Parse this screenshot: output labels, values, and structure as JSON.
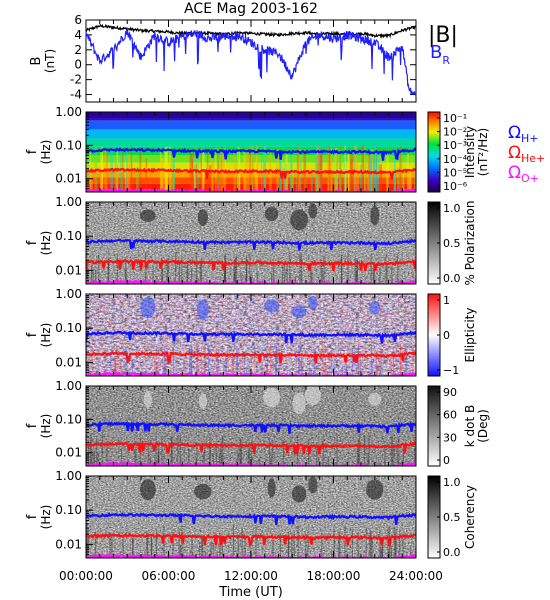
{
  "chart_data": {
    "type": "spectrogram",
    "title": "ACE Mag 2003-162",
    "x_axis": {
      "label": "Time (UT)",
      "tick_labels": [
        "00:00:00",
        "06:00:00",
        "12:00:00",
        "18:00:00",
        "24:00:00"
      ],
      "range_hours": [
        0,
        24
      ]
    },
    "field_panel": {
      "ylabel": "B",
      "yunit": "(nT)",
      "ylim": [
        -5,
        6
      ],
      "yticks": [
        -4,
        -2,
        0,
        2,
        4,
        6
      ],
      "series": [
        {
          "name": "|B|",
          "color": "#000000",
          "t_hours": [
            0,
            1,
            2,
            3,
            4,
            5,
            6,
            7,
            8,
            9,
            10,
            11,
            12,
            13,
            14,
            15,
            16,
            17,
            18,
            19,
            20,
            21,
            22,
            23,
            24
          ],
          "values": [
            4.6,
            5.2,
            5.0,
            4.8,
            4.6,
            4.5,
            4.4,
            4.2,
            4.3,
            4.2,
            4.1,
            4.3,
            4.2,
            4.1,
            4.0,
            4.2,
            4.3,
            4.1,
            4.2,
            4.0,
            4.2,
            3.9,
            3.9,
            4.6,
            5.1
          ]
        },
        {
          "name": "B_R",
          "color": "#2020ff",
          "t_hours": [
            0,
            1,
            2,
            3,
            4,
            5,
            6,
            7,
            8,
            9,
            10,
            11,
            12,
            13,
            14,
            15,
            16,
            17,
            18,
            19,
            20,
            21,
            22,
            23,
            23.5,
            24
          ],
          "values": [
            4.2,
            0.5,
            2.0,
            4.5,
            1.0,
            4.0,
            3.0,
            3.8,
            4.2,
            3.5,
            3.8,
            4.0,
            3.0,
            2.0,
            1.5,
            -1.5,
            3.0,
            4.0,
            3.5,
            4.0,
            3.5,
            3.0,
            1.0,
            2.5,
            -3.5,
            -4.0
          ]
        }
      ]
    },
    "spectrogram_panels": [
      {
        "key": "intensity",
        "ylabel": "f",
        "yunit": "(Hz)",
        "yticks": [
          "1.00",
          "0.10",
          "0.01"
        ],
        "yrange_hz": [
          0.004,
          1.0
        ],
        "colorbar_type": "rainbow",
        "colorbar_labels": [
          "10⁻¹",
          "10⁻²",
          "10⁻³",
          "10⁻⁴",
          "10⁻⁵",
          "10⁻⁶"
        ],
        "colorbar_title": "Intensity",
        "colorbar_unit": "(nT²/Hz)"
      },
      {
        "key": "polarization",
        "ylabel": "f",
        "yunit": "(Hz)",
        "yticks": [
          "1.00",
          "0.10",
          "0.01"
        ],
        "yrange_hz": [
          0.004,
          1.0
        ],
        "colorbar_type": "gray",
        "colorbar_labels": [
          "1.0",
          "0.5",
          "0.0"
        ],
        "colorbar_title": "% Polarization"
      },
      {
        "key": "ellipticity",
        "ylabel": "f",
        "yunit": "(Hz)",
        "yticks": [
          "1.00",
          "0.10",
          "0.01"
        ],
        "yrange_hz": [
          0.004,
          1.0
        ],
        "colorbar_type": "bluewhitered",
        "colorbar_labels": [
          "1",
          "0",
          "−1"
        ],
        "colorbar_title": "Ellipticity"
      },
      {
        "key": "kdotb",
        "ylabel": "f",
        "yunit": "(Hz)",
        "yticks": [
          "1.00",
          "0.10",
          "0.01"
        ],
        "yrange_hz": [
          0.004,
          1.0
        ],
        "colorbar_type": "gray_rev",
        "colorbar_labels": [
          "90",
          "60",
          "30",
          "0"
        ],
        "colorbar_title": "k dot B",
        "colorbar_unit": "(Deg)"
      },
      {
        "key": "coherency",
        "ylabel": "f",
        "yunit": "(Hz)",
        "yticks": [
          "1.00",
          "0.10",
          "0.01"
        ],
        "yrange_hz": [
          0.004,
          1.0
        ],
        "colorbar_type": "gray",
        "colorbar_labels": [
          "1.0",
          "0.5",
          "0.0"
        ],
        "colorbar_title": "Coherency"
      }
    ],
    "gyrofrequency_lines": [
      {
        "name": "Ω",
        "subscript": "H+",
        "color": "#1010ff",
        "t_hours": [
          0,
          2,
          4,
          6,
          8,
          10,
          12,
          14,
          16,
          18,
          20,
          22,
          24
        ],
        "f_hz": [
          0.068,
          0.074,
          0.072,
          0.071,
          0.068,
          0.066,
          0.067,
          0.066,
          0.063,
          0.064,
          0.064,
          0.061,
          0.074
        ]
      },
      {
        "name": "Ω",
        "subscript": "He+",
        "color": "#ff1010",
        "t_hours": [
          0,
          2,
          4,
          6,
          8,
          10,
          12,
          14,
          16,
          18,
          20,
          22,
          24
        ],
        "f_hz": [
          0.017,
          0.0185,
          0.018,
          0.0178,
          0.017,
          0.0165,
          0.0168,
          0.0165,
          0.0158,
          0.016,
          0.016,
          0.0153,
          0.0185
        ]
      },
      {
        "name": "Ω",
        "subscript": "O+",
        "color": "#ff10ff",
        "t_hours": [
          0,
          2,
          4,
          6,
          8,
          10,
          12,
          14,
          16,
          18,
          20,
          22,
          24
        ],
        "f_hz": [
          0.0043,
          0.0046,
          0.0045,
          0.0044,
          0.0043,
          0.0041,
          0.0042,
          0.0041,
          0.004,
          0.004,
          0.004,
          0.0038,
          0.0046
        ]
      }
    ]
  }
}
